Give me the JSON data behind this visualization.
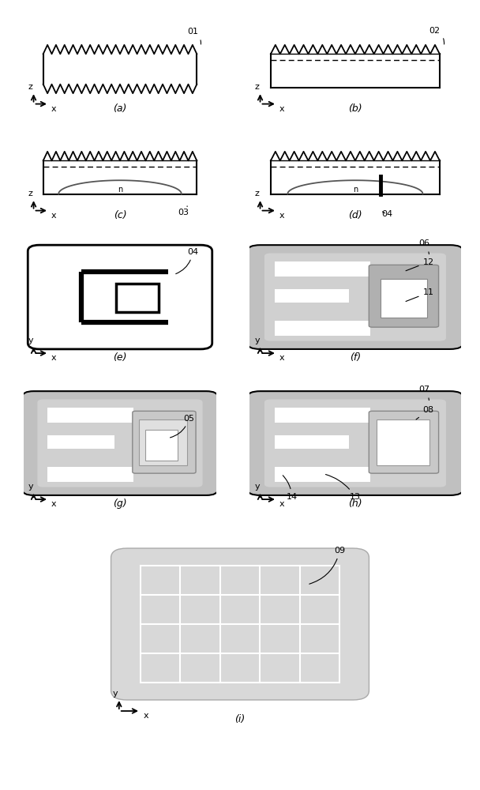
{
  "bg_color": "#ffffff",
  "labels": {
    "a": "(a)",
    "b": "(b)",
    "c": "(c)",
    "d": "(d)",
    "e": "(e)",
    "f": "(f)",
    "g": "(g)",
    "h": "(h)",
    "i": "(i)"
  }
}
